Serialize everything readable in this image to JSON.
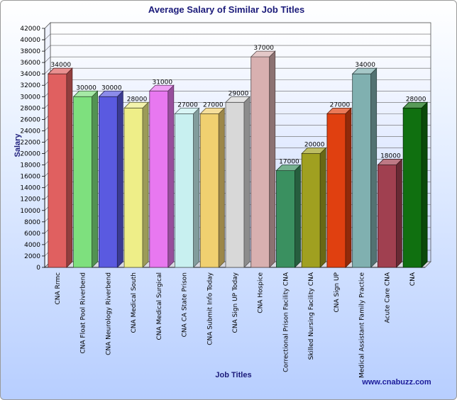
{
  "chart_data": {
    "type": "bar",
    "title": "Average Salary of Similar Job Titles",
    "xlabel": "Job Titles",
    "ylabel": "Salary",
    "ylim": [
      0,
      42000
    ],
    "ytick_step": 2000,
    "grid": true,
    "categories": [
      "CNA Rrmc",
      "CNA Float Pool Riverbend",
      "CNA Neurology Riverbend",
      "CNA Medical South",
      "CNA Medical Surgical",
      "CNA CA State Prison",
      "CNA Submit Info Today",
      "CNA Sign UP Today",
      "CNA Hospice",
      "Correctional Prison Facility CNA",
      "Skilled Nursing Facility CNA",
      "CNA Sign UP",
      "Medical Assistant Family Practice",
      "Acute Care CNA",
      "CNA"
    ],
    "values": [
      34000,
      30000,
      30000,
      28000,
      31000,
      27000,
      27000,
      29000,
      37000,
      17000,
      20000,
      27000,
      34000,
      18000,
      28000
    ],
    "colors": [
      "#e06060",
      "#7ee07e",
      "#5a5ae0",
      "#eeee88",
      "#e878f0",
      "#c8f0f0",
      "#f0d070",
      "#d8d8d8",
      "#d8b0b0",
      "#3a9060",
      "#a0a020",
      "#e04010",
      "#80b0b0",
      "#a04050",
      "#107010"
    ]
  },
  "footer": {
    "brand": "www.cnabuzz.com"
  }
}
